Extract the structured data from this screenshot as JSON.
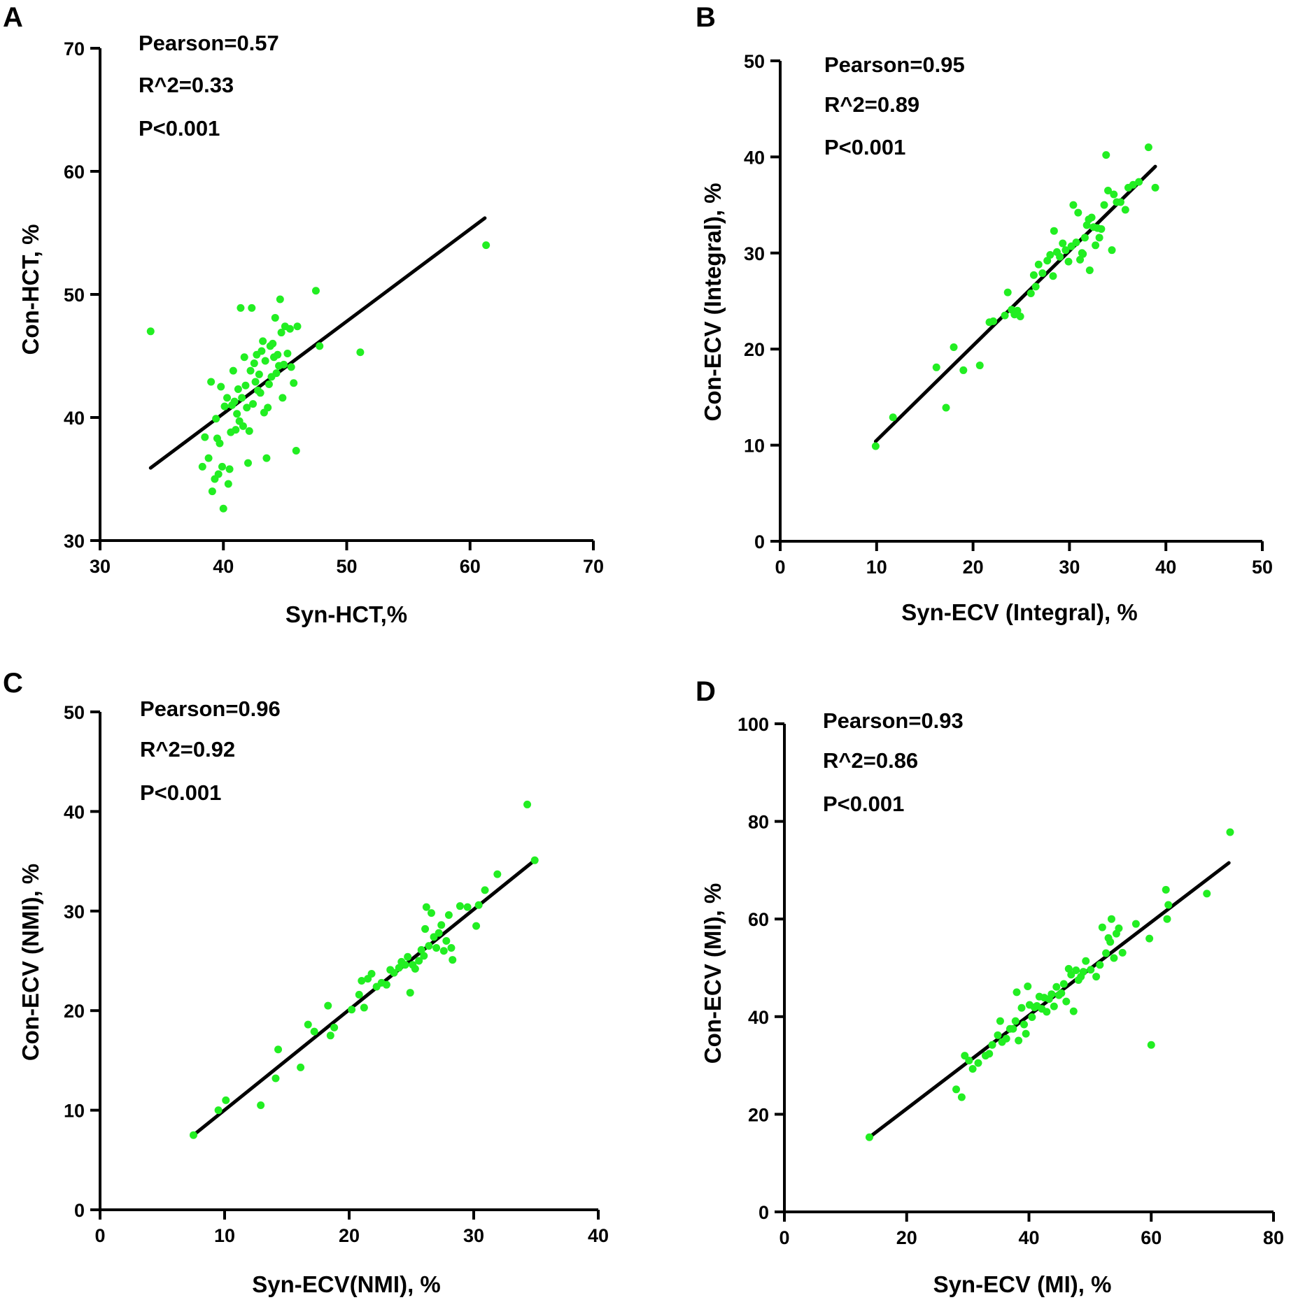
{
  "colors": {
    "point": "#22ee22",
    "line": "#000000",
    "axis": "#000000",
    "background": "#ffffff"
  },
  "chart_data": [
    {
      "type": "scatter",
      "panel": "A",
      "xlabel": "Syn-HCT,%",
      "ylabel": "Con-HCT, %",
      "xlim": [
        30,
        70
      ],
      "ylim": [
        30,
        70
      ],
      "xticks": [
        30,
        40,
        50,
        60,
        70
      ],
      "yticks": [
        30,
        40,
        50,
        60,
        70
      ],
      "stats": [
        "Pearson=0.57",
        "R^2=0.33",
        "P<0.001"
      ],
      "fit_line": [
        [
          34.1,
          35.9
        ],
        [
          61.2,
          56.2
        ]
      ],
      "points": [
        [
          34.1,
          47.0
        ],
        [
          38.3,
          36.0
        ],
        [
          38.5,
          38.4
        ],
        [
          38.8,
          36.7
        ],
        [
          39.0,
          42.9
        ],
        [
          39.1,
          34.0
        ],
        [
          39.3,
          35.0
        ],
        [
          39.4,
          39.9
        ],
        [
          39.5,
          38.3
        ],
        [
          39.6,
          35.4
        ],
        [
          39.7,
          37.9
        ],
        [
          39.8,
          42.5
        ],
        [
          39.9,
          36.0
        ],
        [
          40.0,
          32.6
        ],
        [
          40.1,
          40.9
        ],
        [
          40.3,
          41.6
        ],
        [
          40.4,
          34.6
        ],
        [
          40.5,
          35.8
        ],
        [
          40.6,
          38.8
        ],
        [
          40.7,
          41.0
        ],
        [
          40.8,
          43.8
        ],
        [
          40.9,
          41.3
        ],
        [
          41.0,
          39.0
        ],
        [
          41.1,
          40.3
        ],
        [
          41.2,
          42.3
        ],
        [
          41.3,
          39.7
        ],
        [
          41.4,
          48.9
        ],
        [
          41.5,
          41.6
        ],
        [
          41.6,
          39.3
        ],
        [
          41.7,
          44.9
        ],
        [
          41.8,
          42.6
        ],
        [
          41.9,
          40.8
        ],
        [
          42.0,
          36.3
        ],
        [
          42.1,
          38.9
        ],
        [
          42.2,
          43.8
        ],
        [
          42.3,
          48.9
        ],
        [
          42.4,
          41.1
        ],
        [
          42.5,
          44.4
        ],
        [
          42.6,
          42.9
        ],
        [
          42.7,
          45.1
        ],
        [
          42.8,
          42.2
        ],
        [
          42.9,
          43.5
        ],
        [
          43.0,
          42.0
        ],
        [
          43.1,
          45.4
        ],
        [
          43.2,
          46.2
        ],
        [
          43.3,
          40.4
        ],
        [
          43.4,
          44.6
        ],
        [
          43.5,
          36.7
        ],
        [
          43.6,
          40.8
        ],
        [
          43.7,
          42.7
        ],
        [
          43.8,
          45.8
        ],
        [
          43.9,
          43.3
        ],
        [
          44.0,
          46.0
        ],
        [
          44.1,
          44.9
        ],
        [
          44.2,
          48.1
        ],
        [
          44.3,
          43.6
        ],
        [
          44.4,
          45.1
        ],
        [
          44.5,
          44.2
        ],
        [
          44.6,
          49.6
        ],
        [
          44.7,
          46.9
        ],
        [
          44.8,
          41.6
        ],
        [
          44.9,
          44.3
        ],
        [
          45.0,
          47.4
        ],
        [
          45.2,
          45.2
        ],
        [
          45.4,
          47.2
        ],
        [
          45.5,
          44.1
        ],
        [
          45.7,
          42.8
        ],
        [
          45.9,
          37.3
        ],
        [
          46.0,
          47.4
        ],
        [
          47.5,
          50.3
        ],
        [
          47.8,
          45.8
        ],
        [
          51.1,
          45.3
        ],
        [
          61.3,
          54.0
        ]
      ]
    },
    {
      "type": "scatter",
      "panel": "B",
      "xlabel": "Syn-ECV (Integral), %",
      "ylabel": "Con-ECV (Integral), %",
      "xlim": [
        0,
        50
      ],
      "ylim": [
        0,
        50
      ],
      "xticks": [
        0,
        10,
        20,
        30,
        40,
        50
      ],
      "yticks": [
        0,
        10,
        20,
        30,
        40,
        50
      ],
      "stats": [
        "Pearson=0.95",
        "R^2=0.89",
        "P<0.001"
      ],
      "fit_line": [
        [
          9.9,
          10.4
        ],
        [
          38.9,
          39.0
        ]
      ],
      "points": [
        [
          9.9,
          9.9
        ],
        [
          11.7,
          12.9
        ],
        [
          16.2,
          18.1
        ],
        [
          17.2,
          13.9
        ],
        [
          18.0,
          20.2
        ],
        [
          19.0,
          17.8
        ],
        [
          20.7,
          18.3
        ],
        [
          21.7,
          22.8
        ],
        [
          22.1,
          22.9
        ],
        [
          23.3,
          23.5
        ],
        [
          23.6,
          25.9
        ],
        [
          24.0,
          24.1
        ],
        [
          24.3,
          23.6
        ],
        [
          24.6,
          24.0
        ],
        [
          24.9,
          23.4
        ],
        [
          26.0,
          25.8
        ],
        [
          26.3,
          27.7
        ],
        [
          26.5,
          26.5
        ],
        [
          26.8,
          28.8
        ],
        [
          27.2,
          27.9
        ],
        [
          27.7,
          29.2
        ],
        [
          28.0,
          29.8
        ],
        [
          28.3,
          27.6
        ],
        [
          28.4,
          32.3
        ],
        [
          28.7,
          30.1
        ],
        [
          29.0,
          29.6
        ],
        [
          29.3,
          31.0
        ],
        [
          29.6,
          30.3
        ],
        [
          29.9,
          29.1
        ],
        [
          30.2,
          30.7
        ],
        [
          30.4,
          35.0
        ],
        [
          30.7,
          31.1
        ],
        [
          30.9,
          34.2
        ],
        [
          31.1,
          29.3
        ],
        [
          31.3,
          30.0
        ],
        [
          31.4,
          29.9
        ],
        [
          31.6,
          31.6
        ],
        [
          31.8,
          32.9
        ],
        [
          32.0,
          33.5
        ],
        [
          32.1,
          28.2
        ],
        [
          32.3,
          33.7
        ],
        [
          32.5,
          32.7
        ],
        [
          32.7,
          30.8
        ],
        [
          32.9,
          32.6
        ],
        [
          33.1,
          31.6
        ],
        [
          33.3,
          32.5
        ],
        [
          33.6,
          35.0
        ],
        [
          33.8,
          40.2
        ],
        [
          34.0,
          36.5
        ],
        [
          34.4,
          30.3
        ],
        [
          34.6,
          36.1
        ],
        [
          34.9,
          35.3
        ],
        [
          35.3,
          35.3
        ],
        [
          35.8,
          34.5
        ],
        [
          36.1,
          36.8
        ],
        [
          36.6,
          37.1
        ],
        [
          37.2,
          37.4
        ],
        [
          38.2,
          41.0
        ],
        [
          38.9,
          36.8
        ]
      ]
    },
    {
      "type": "scatter",
      "panel": "C",
      "xlabel": "Syn-ECV(NMI), %",
      "ylabel": "Con-ECV (NMI), %",
      "xlim": [
        0,
        40
      ],
      "ylim": [
        0,
        50
      ],
      "xticks": [
        0,
        10,
        20,
        30,
        40
      ],
      "yticks": [
        0,
        10,
        20,
        30,
        40,
        50
      ],
      "stats": [
        "Pearson=0.96",
        "R^2=0.92",
        "P<0.001"
      ],
      "fit_line": [
        [
          7.5,
          7.5
        ],
        [
          34.9,
          35.1
        ]
      ],
      "points": [
        [
          7.5,
          7.5
        ],
        [
          9.5,
          10.0
        ],
        [
          10.1,
          11.0
        ],
        [
          12.9,
          10.5
        ],
        [
          14.1,
          13.2
        ],
        [
          14.3,
          16.1
        ],
        [
          16.1,
          14.3
        ],
        [
          16.7,
          18.6
        ],
        [
          17.2,
          17.9
        ],
        [
          18.3,
          20.5
        ],
        [
          18.5,
          17.5
        ],
        [
          18.8,
          18.3
        ],
        [
          20.2,
          20.1
        ],
        [
          20.8,
          21.6
        ],
        [
          21.0,
          23.0
        ],
        [
          21.2,
          20.3
        ],
        [
          21.5,
          23.2
        ],
        [
          21.8,
          23.7
        ],
        [
          22.2,
          22.4
        ],
        [
          22.6,
          22.8
        ],
        [
          23.0,
          22.6
        ],
        [
          23.3,
          24.1
        ],
        [
          23.6,
          23.8
        ],
        [
          24.0,
          24.3
        ],
        [
          24.2,
          24.9
        ],
        [
          24.5,
          24.6
        ],
        [
          24.7,
          25.4
        ],
        [
          24.9,
          21.8
        ],
        [
          25.1,
          24.6
        ],
        [
          25.3,
          24.2
        ],
        [
          25.6,
          25.0
        ],
        [
          25.8,
          26.1
        ],
        [
          26.0,
          25.5
        ],
        [
          26.1,
          28.2
        ],
        [
          26.2,
          30.4
        ],
        [
          26.4,
          26.5
        ],
        [
          26.6,
          29.8
        ],
        [
          26.8,
          27.4
        ],
        [
          27.0,
          26.3
        ],
        [
          27.2,
          27.8
        ],
        [
          27.4,
          28.6
        ],
        [
          27.6,
          26.0
        ],
        [
          27.8,
          27.0
        ],
        [
          28.0,
          29.6
        ],
        [
          28.2,
          26.3
        ],
        [
          28.3,
          25.1
        ],
        [
          28.9,
          30.5
        ],
        [
          29.5,
          30.4
        ],
        [
          30.2,
          28.5
        ],
        [
          30.4,
          30.6
        ],
        [
          30.9,
          32.1
        ],
        [
          31.9,
          33.7
        ],
        [
          34.3,
          40.7
        ],
        [
          34.9,
          35.1
        ]
      ]
    },
    {
      "type": "scatter",
      "panel": "D",
      "xlabel": "Syn-ECV (MI), %",
      "ylabel": "Con-ECV (MI), %",
      "xlim": [
        0,
        80
      ],
      "ylim": [
        0,
        100
      ],
      "xticks": [
        0,
        20,
        40,
        60,
        80
      ],
      "yticks": [
        0,
        20,
        40,
        60,
        80,
        100
      ],
      "stats": [
        "Pearson=0.93",
        "R^2=0.86",
        "P<0.001"
      ],
      "fit_line": [
        [
          13.9,
          15.3
        ],
        [
          72.7,
          71.5
        ]
      ],
      "points": [
        [
          13.9,
          15.3
        ],
        [
          28.1,
          25.1
        ],
        [
          29.0,
          23.5
        ],
        [
          29.5,
          32.0
        ],
        [
          30.2,
          31.0
        ],
        [
          30.8,
          29.3
        ],
        [
          31.7,
          30.5
        ],
        [
          32.9,
          32.0
        ],
        [
          33.5,
          32.4
        ],
        [
          34.0,
          34.2
        ],
        [
          34.9,
          36.2
        ],
        [
          35.3,
          39.1
        ],
        [
          35.6,
          34.8
        ],
        [
          36.3,
          35.5
        ],
        [
          36.9,
          37.5
        ],
        [
          37.4,
          37.5
        ],
        [
          37.8,
          39.1
        ],
        [
          38.0,
          45.0
        ],
        [
          38.3,
          35.1
        ],
        [
          38.8,
          41.8
        ],
        [
          39.2,
          38.4
        ],
        [
          39.5,
          36.5
        ],
        [
          39.8,
          46.2
        ],
        [
          40.1,
          42.4
        ],
        [
          40.5,
          39.9
        ],
        [
          40.9,
          41.9
        ],
        [
          41.3,
          42.2
        ],
        [
          41.7,
          44.1
        ],
        [
          42.1,
          41.6
        ],
        [
          42.5,
          43.9
        ],
        [
          42.9,
          41.0
        ],
        [
          43.3,
          43.6
        ],
        [
          43.7,
          44.6
        ],
        [
          44.1,
          42.1
        ],
        [
          44.5,
          46.1
        ],
        [
          44.9,
          44.4
        ],
        [
          45.3,
          44.8
        ],
        [
          45.7,
          46.7
        ],
        [
          46.1,
          43.1
        ],
        [
          46.5,
          49.8
        ],
        [
          46.9,
          48.6
        ],
        [
          47.3,
          41.1
        ],
        [
          47.7,
          49.5
        ],
        [
          48.1,
          47.5
        ],
        [
          48.5,
          48.2
        ],
        [
          48.9,
          49.2
        ],
        [
          49.3,
          51.4
        ],
        [
          50.1,
          49.6
        ],
        [
          51.0,
          48.2
        ],
        [
          51.6,
          50.6
        ],
        [
          52.0,
          58.3
        ],
        [
          52.6,
          53.0
        ],
        [
          53.0,
          56.1
        ],
        [
          53.3,
          55.3
        ],
        [
          53.5,
          60.0
        ],
        [
          53.9,
          52.0
        ],
        [
          54.3,
          57.0
        ],
        [
          54.7,
          58.1
        ],
        [
          55.3,
          53.1
        ],
        [
          57.5,
          59.0
        ],
        [
          59.7,
          56.0
        ],
        [
          60.0,
          34.2
        ],
        [
          62.4,
          66.0
        ],
        [
          62.8,
          62.9
        ],
        [
          62.6,
          60.0
        ],
        [
          69.1,
          65.2
        ],
        [
          72.9,
          77.8
        ]
      ]
    }
  ]
}
